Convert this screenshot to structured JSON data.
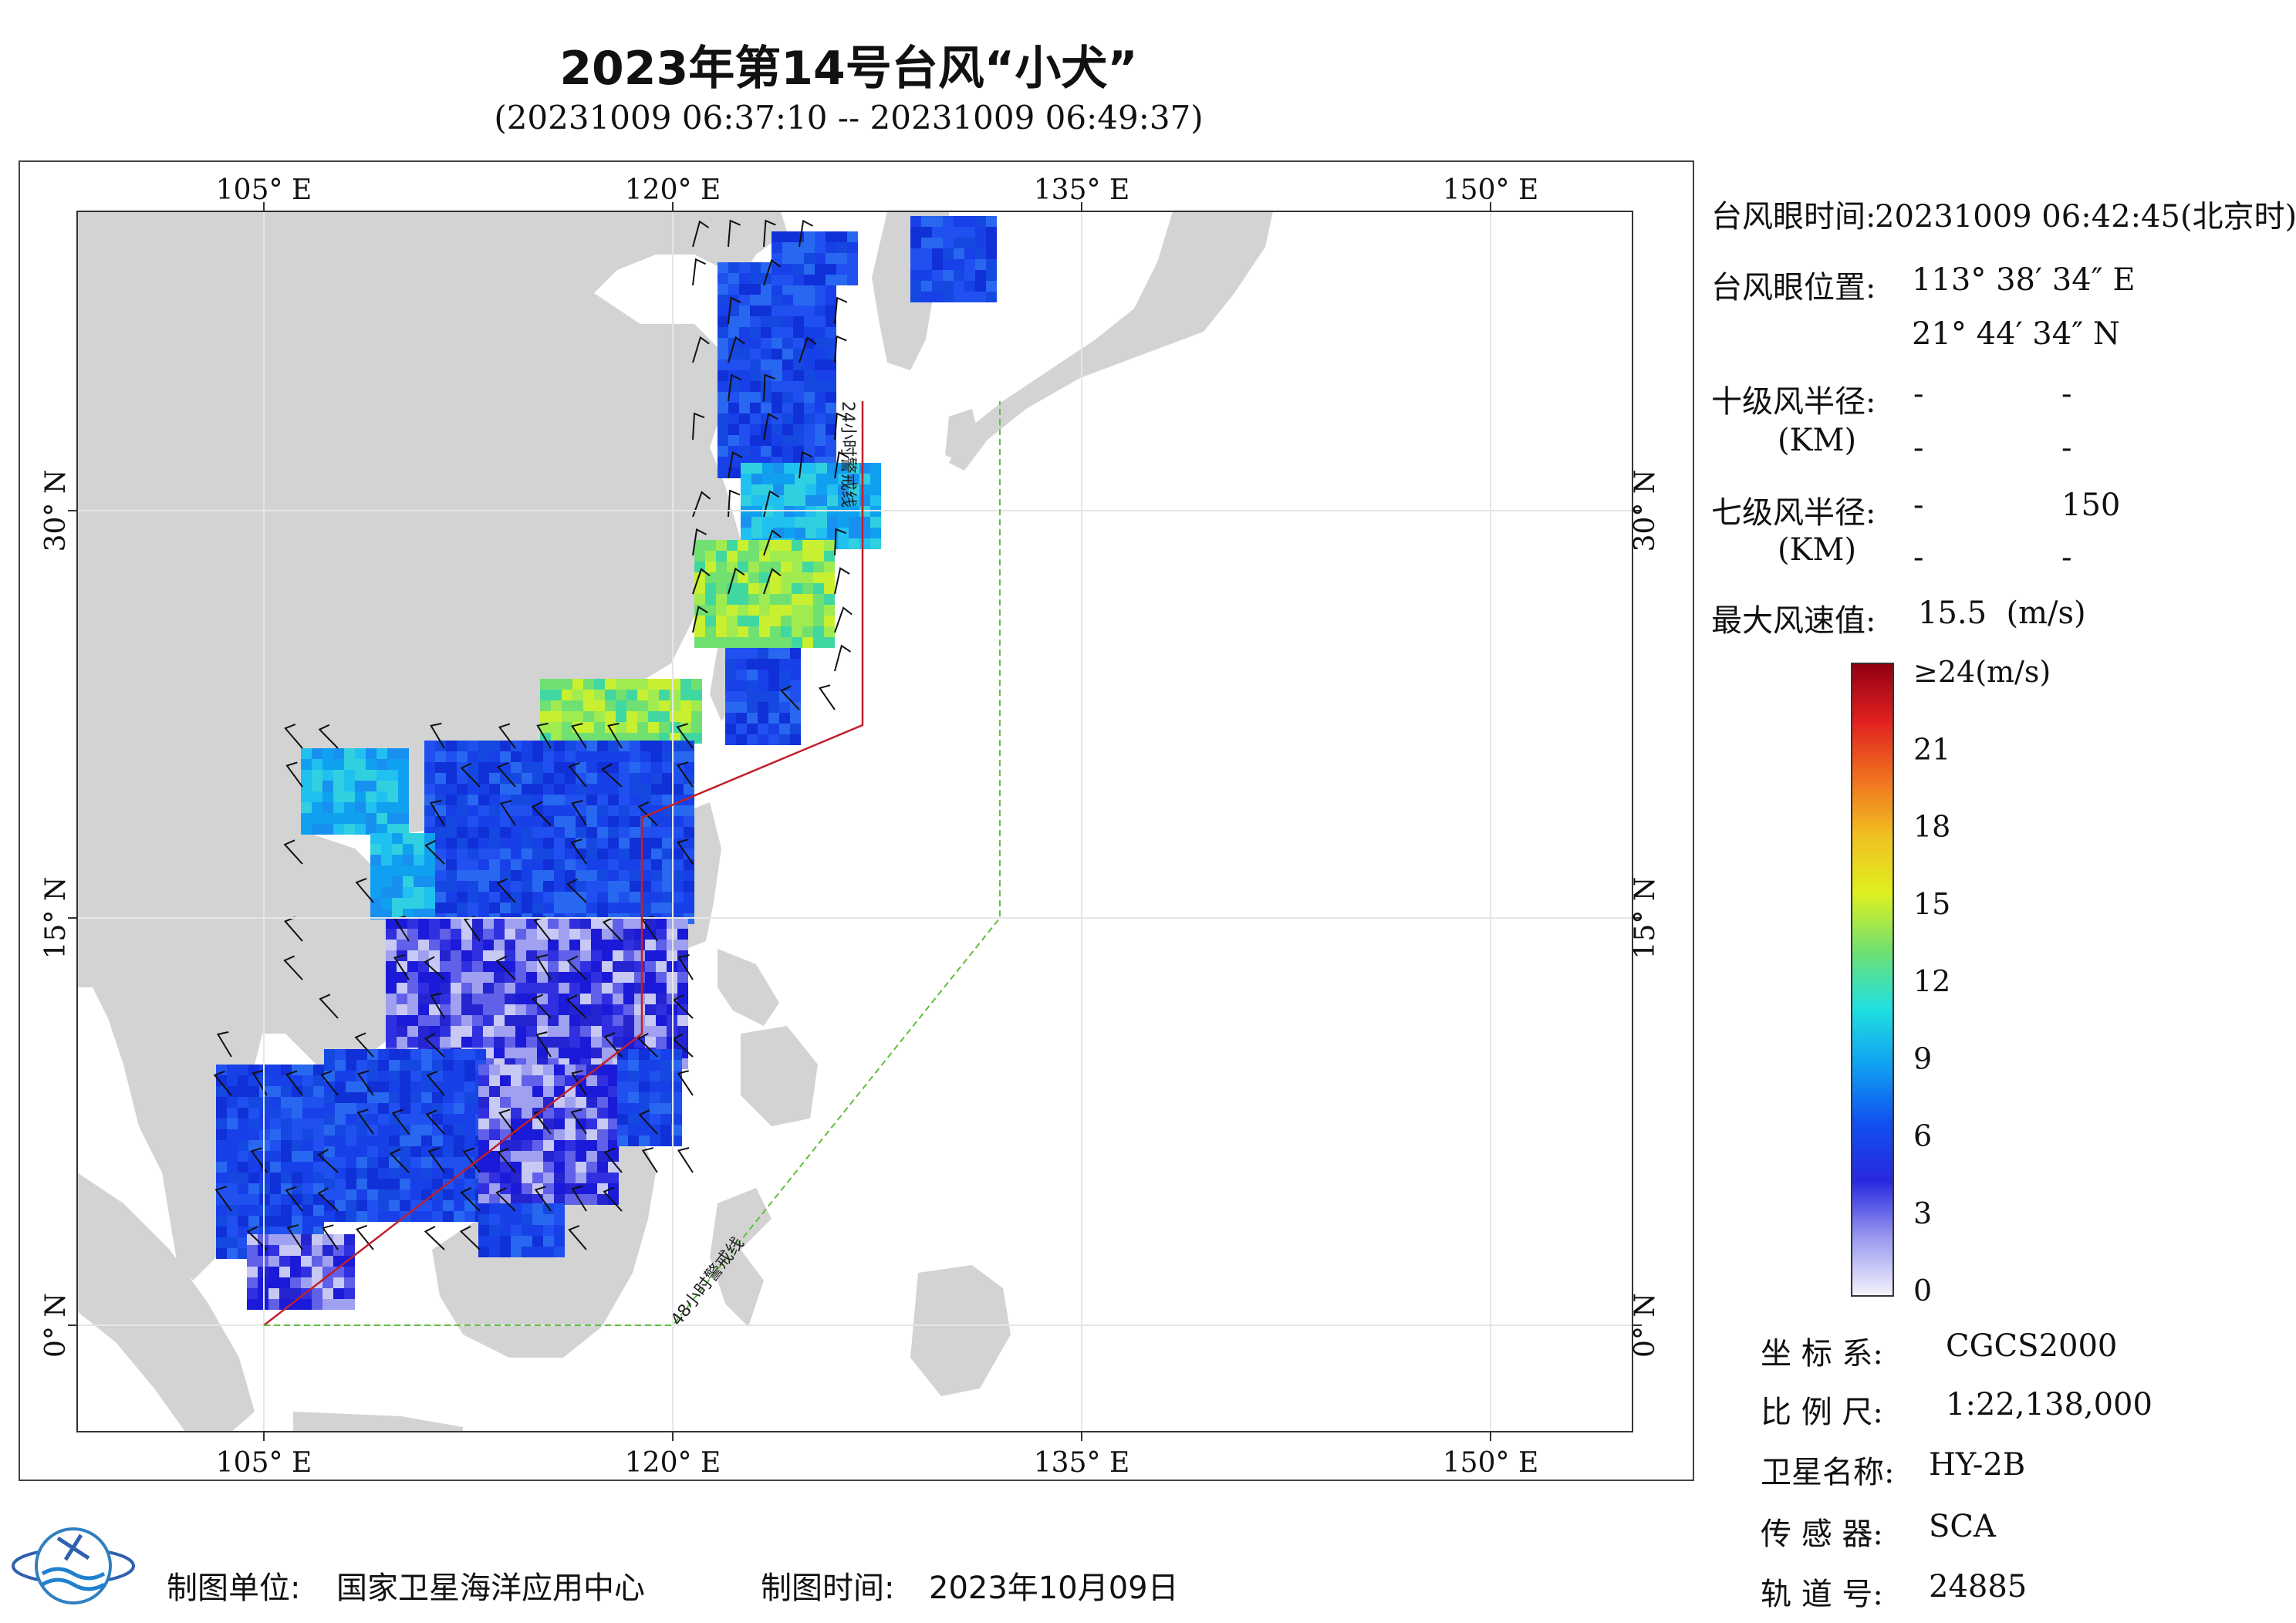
{
  "title": "2023年第14号台风“小犬”",
  "subtitle": "(20231009 06:37:10 -- 20231009 06:49:37)",
  "map": {
    "lon_labels": [
      "105° E",
      "120° E",
      "135° E",
      "150° E"
    ],
    "lat_labels": [
      "30° N",
      "15° N",
      "0° N"
    ],
    "warning_24h_label": "24小时警戒线",
    "warning_48h_label": "48小时警戒线",
    "colors": {
      "land": "#d3d3d3",
      "sea": "#ffffff",
      "warning_24h": "#c0202a",
      "warning_48h": "#5fbf3f"
    }
  },
  "info": {
    "eye_time_label": "台风眼时间:",
    "eye_time_value": "20231009 06:42:45(北京时)",
    "eye_pos_label": "台风眼位置:",
    "eye_lon": "113° 38′ 34″ E",
    "eye_lat": "21° 44′ 34″ N",
    "r10_label": "十级风半径:",
    "r10_unit": "(KM)",
    "r10_values": [
      "-",
      "-",
      "-",
      "-"
    ],
    "r7_label": "七级风半径:",
    "r7_unit": "(KM)",
    "r7_values": [
      "-",
      "150",
      "-",
      "-"
    ],
    "max_wind_label": "最大风速值:",
    "max_wind_value": "15.5  (m/s)"
  },
  "colorbar": {
    "ticks": [
      "≥24(m/s)",
      "21",
      "18",
      "15",
      "12",
      "9",
      "6",
      "3",
      "0"
    ],
    "stops": [
      "#f4f4fc",
      "#9a9af0",
      "#2828e0",
      "#1050f0",
      "#10a0f0",
      "#20e0e0",
      "#70e070",
      "#e0f020",
      "#f0c020",
      "#f07020",
      "#e02020",
      "#900010"
    ]
  },
  "meta": {
    "crs_label": "坐 标 系:",
    "crs_value": "CGCS2000",
    "scale_label": "比 例 尺:",
    "scale_value": "1:22,138,000",
    "sat_label": "卫星名称:",
    "sat_value": "HY-2B",
    "sensor_label": "传 感 器:",
    "sensor_value": "SCA",
    "orbit_label": "轨 道 号:",
    "orbit_value": "24885"
  },
  "footer": {
    "org_label": "制图单位:",
    "org_value": "国家卫星海洋应用中心",
    "date_label": "制图时间:",
    "date_value": "2023年10月09日"
  }
}
